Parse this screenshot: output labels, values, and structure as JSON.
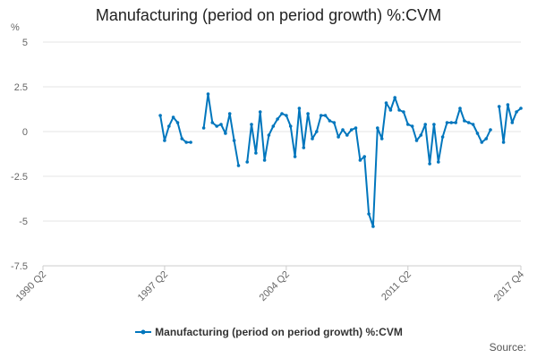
{
  "chart_data": {
    "type": "line",
    "title": "Manufacturing (period on period growth) %:CVM",
    "ylabel": "%",
    "xlabel": "",
    "ylim": [
      -7.5,
      5
    ],
    "yticks": [
      -7.5,
      -5,
      -2.5,
      0,
      2.5,
      5
    ],
    "ytick_labels": [
      "-7.5",
      "-5",
      "-2.5",
      "0",
      "2.5",
      "5"
    ],
    "xticks": [
      {
        "label": "1990 Q2",
        "q": 0
      },
      {
        "label": "1997 Q2",
        "q": 28
      },
      {
        "label": "2004 Q2",
        "q": 56
      },
      {
        "label": "2011 Q2",
        "q": 84
      },
      {
        "label": "2017 Q4",
        "q": 110
      }
    ],
    "x_start": "1990 Q2",
    "x_end": "2017 Q4",
    "grid": "horizontal",
    "legend_position": "bottom",
    "source": "Source:",
    "colors": {
      "series": "#0076bd",
      "grid": "#e6e6e6",
      "zero": "#dddddd"
    },
    "series": [
      {
        "name": "Manufacturing (period on period growth) %:CVM",
        "q_start": 0,
        "values": [
          null,
          null,
          null,
          null,
          null,
          null,
          null,
          null,
          null,
          null,
          null,
          null,
          null,
          null,
          null,
          null,
          null,
          null,
          null,
          null,
          null,
          null,
          null,
          null,
          null,
          null,
          null,
          null,
          null,
          null,
          null,
          null,
          null,
          null,
          null,
          null,
          null,
          null,
          null,
          null,
          null,
          null,
          null,
          null,
          null,
          null,
          null,
          null,
          null,
          null,
          null,
          null,
          null,
          null,
          null,
          null,
          null,
          null,
          null,
          null,
          null,
          null,
          null,
          null,
          null,
          null,
          null,
          null,
          null,
          null,
          null,
          null,
          null,
          null,
          null,
          null,
          null,
          null,
          null,
          null,
          null,
          null,
          null,
          null,
          null,
          null,
          null,
          null,
          null,
          null,
          null,
          null,
          null,
          null,
          null,
          null,
          null,
          null,
          null,
          null,
          null,
          null,
          null,
          null,
          null,
          null,
          null,
          null,
          null,
          null,
          null
        ],
        "points": [
          [
            "1997 Q1",
            0.9
          ],
          [
            "1997 Q2",
            -0.5
          ],
          [
            "1997 Q3",
            0.3
          ],
          [
            "1997 Q4",
            0.8
          ],
          [
            "1998 Q1",
            0.5
          ],
          [
            "1998 Q2",
            -0.4
          ],
          [
            "1998 Q3",
            -0.6
          ],
          [
            "1998 Q4",
            -0.6
          ],
          [
            "1999 Q3",
            0.2
          ],
          [
            "1999 Q4",
            2.1
          ],
          [
            "2000 Q1",
            0.5
          ],
          [
            "2000 Q2",
            0.3
          ],
          [
            "2000 Q3",
            0.4
          ],
          [
            "2000 Q4",
            -0.1
          ],
          [
            "2001 Q1",
            1.0
          ],
          [
            "2001 Q2",
            -0.5
          ],
          [
            "2001 Q3",
            -1.9
          ],
          [
            "2002 Q1",
            -1.7
          ],
          [
            "2002 Q2",
            0.4
          ],
          [
            "2002 Q3",
            -1.2
          ],
          [
            "2002 Q4",
            1.1
          ],
          [
            "2003 Q1",
            -1.6
          ],
          [
            "2003 Q2",
            -0.2
          ],
          [
            "2003 Q3",
            0.3
          ],
          [
            "2003 Q4",
            0.7
          ],
          [
            "2004 Q1",
            1.0
          ],
          [
            "2004 Q2",
            0.9
          ],
          [
            "2004 Q3",
            0.3
          ],
          [
            "2004 Q4",
            -1.4
          ],
          [
            "2005 Q1",
            1.3
          ],
          [
            "2005 Q2",
            -0.9
          ],
          [
            "2005 Q3",
            1.0
          ],
          [
            "2005 Q4",
            -0.4
          ],
          [
            "2006 Q1",
            0.0
          ],
          [
            "2006 Q2",
            0.9
          ],
          [
            "2006 Q3",
            0.9
          ],
          [
            "2006 Q4",
            0.6
          ],
          [
            "2007 Q1",
            0.5
          ],
          [
            "2007 Q2",
            -0.3
          ],
          [
            "2007 Q3",
            0.1
          ],
          [
            "2007 Q4",
            -0.2
          ],
          [
            "2008 Q1",
            0.1
          ],
          [
            "2008 Q2",
            0.2
          ],
          [
            "2008 Q3",
            -1.6
          ],
          [
            "2008 Q4",
            -1.4
          ],
          [
            "2009 Q1",
            -4.6
          ],
          [
            "2009 Q2",
            -5.3
          ],
          [
            "2009 Q3",
            0.2
          ],
          [
            "2009 Q4",
            -0.4
          ],
          [
            "2010 Q1",
            1.6
          ],
          [
            "2010 Q2",
            1.2
          ],
          [
            "2010 Q3",
            1.9
          ],
          [
            "2010 Q4",
            1.2
          ],
          [
            "2011 Q1",
            1.1
          ],
          [
            "2011 Q2",
            0.4
          ],
          [
            "2011 Q3",
            0.3
          ],
          [
            "2011 Q4",
            -0.5
          ],
          [
            "2012 Q1",
            -0.2
          ],
          [
            "2012 Q2",
            0.4
          ],
          [
            "2012 Q3",
            -1.8
          ],
          [
            "2012 Q4",
            0.4
          ],
          [
            "2013 Q1",
            -1.7
          ],
          [
            "2013 Q2",
            -0.3
          ],
          [
            "2013 Q3",
            0.5
          ],
          [
            "2013 Q4",
            0.5
          ],
          [
            "2014 Q1",
            0.5
          ],
          [
            "2014 Q2",
            1.3
          ],
          [
            "2014 Q3",
            0.6
          ],
          [
            "2014 Q4",
            0.5
          ],
          [
            "2015 Q1",
            0.4
          ],
          [
            "2015 Q2",
            -0.1
          ],
          [
            "2015 Q3",
            -0.6
          ],
          [
            "2015 Q4",
            -0.4
          ],
          [
            "2016 Q1",
            0.1
          ],
          [
            "2016 Q3",
            1.4
          ],
          [
            "2016 Q4",
            -0.6
          ],
          [
            "2017 Q1",
            1.5
          ],
          [
            "2017 Q2",
            0.5
          ],
          [
            "2017 Q3",
            1.1
          ],
          [
            "2017 Q4",
            1.3
          ]
        ]
      }
    ]
  }
}
